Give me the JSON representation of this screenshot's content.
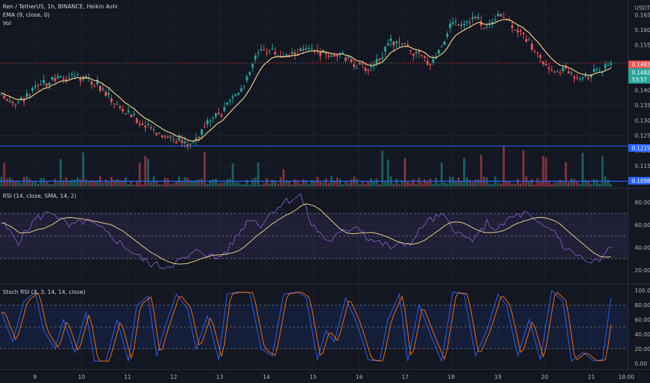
{
  "header": {
    "line1": "Ren / TetherUS, 1h, BINANCE, Heikin Ashi",
    "line2": "EMA (9, close, 0)",
    "line3": "Vol"
  },
  "price_axis": {
    "unit": "USDT",
    "ticks": [
      "0.1650",
      "0.1600",
      "0.1550",
      "0.1450",
      "0.1400",
      "0.1350",
      "0.1300",
      "0.1250",
      "0.1200",
      "0.1150",
      "0.1100"
    ],
    "tags": {
      "current": "0.1482",
      "ema": "0.1482",
      "countdown": "53:57",
      "line_upper": "0.1215",
      "line_lower": "0.1098"
    }
  },
  "rsi": {
    "title": "RSI (14, close, SMA, 14, 2)",
    "ticks": [
      "80.00",
      "60.00",
      "40.00",
      "20.00"
    ]
  },
  "stoch": {
    "title": "Stoch RSI (3, 3, 14, 14, close)",
    "ticks": [
      "100.00",
      "80.00",
      "60.00",
      "40.00",
      "20.00",
      "0.00"
    ]
  },
  "time_axis": {
    "labels": [
      "9",
      "10",
      "11",
      "12",
      "13",
      "14",
      "15",
      "16",
      "17",
      "18",
      "19",
      "20",
      "21",
      "18:00"
    ]
  },
  "colors": {
    "background": "#131722",
    "up": "#26a69a",
    "down": "#ef5350",
    "ema": "#f5d68a",
    "rsi": "#7e57c2",
    "rsi_ma": "#f5d68a",
    "stoch_k": "#2962ff",
    "stoch_d": "#ff6d00",
    "hline": "#2962ff"
  },
  "chart_data": [
    {
      "type": "candlestick",
      "title": "Ren / TetherUS, 1h, BINANCE, Heikin Ashi",
      "ylim": [
        0.1085,
        0.169
      ],
      "hlines": [
        0.1215,
        0.1098
      ],
      "anchors_x": [
        0,
        6,
        13,
        17,
        22,
        26,
        30,
        34,
        38,
        42,
        47,
        51,
        56,
        61,
        66,
        70,
        74,
        78,
        81,
        84,
        88,
        90,
        93,
        96,
        101,
        105,
        111,
        115,
        120,
        123,
        127,
        130,
        133,
        136,
        138,
        142,
        145,
        149,
        152,
        155,
        159,
        163,
        168,
        172,
        176,
        181,
        186,
        190,
        194,
        199,
        203,
        208,
        213,
        216
      ],
      "anchors_price": [
        0.138,
        0.136,
        0.141,
        0.143,
        0.144,
        0.145,
        0.144,
        0.142,
        0.138,
        0.134,
        0.131,
        0.128,
        0.126,
        0.124,
        0.122,
        0.125,
        0.13,
        0.132,
        0.136,
        0.14,
        0.145,
        0.152,
        0.154,
        0.153,
        0.151,
        0.153,
        0.153,
        0.152,
        0.152,
        0.15,
        0.148,
        0.147,
        0.15,
        0.153,
        0.156,
        0.155,
        0.153,
        0.151,
        0.149,
        0.153,
        0.162,
        0.163,
        0.164,
        0.161,
        0.166,
        0.162,
        0.157,
        0.152,
        0.146,
        0.147,
        0.145,
        0.145,
        0.147,
        0.148
      ]
    },
    {
      "type": "line",
      "title": "RSI (14, close, SMA, 14, 2)",
      "ylim": [
        10,
        90
      ],
      "bands": [
        30,
        50,
        70
      ],
      "anchors_x": [
        0,
        6,
        12,
        18,
        24,
        30,
        36,
        42,
        48,
        52,
        58,
        62,
        66,
        70,
        76,
        80,
        84,
        88,
        92,
        96,
        100,
        106,
        110,
        116,
        120,
        126,
        130,
        134,
        138,
        142,
        146,
        150,
        156,
        160,
        164,
        168,
        172,
        176,
        180,
        186,
        190,
        196,
        200,
        204,
        208,
        212,
        216
      ],
      "anchors_value": [
        62,
        45,
        65,
        72,
        58,
        64,
        55,
        44,
        33,
        26,
        23,
        27,
        31,
        38,
        30,
        37,
        52,
        66,
        60,
        72,
        80,
        86,
        60,
        45,
        52,
        60,
        48,
        44,
        40,
        42,
        46,
        62,
        68,
        58,
        48,
        47,
        62,
        55,
        66,
        70,
        60,
        55,
        38,
        34,
        26,
        28,
        40
      ]
    },
    {
      "type": "line",
      "title": "Stoch RSI (3, 3, 14, 14, close)",
      "ylim": [
        -5,
        105
      ],
      "bands": [
        20,
        50,
        80
      ],
      "anchors_x": [
        0,
        4,
        8,
        12,
        15,
        19,
        22,
        26,
        30,
        33,
        37,
        41,
        45,
        48,
        52,
        55,
        58,
        62,
        66,
        69,
        73,
        77,
        80,
        84,
        88,
        92,
        96,
        100,
        105,
        108,
        112,
        115,
        118,
        122,
        126,
        130,
        134,
        137,
        141,
        144,
        148,
        152,
        156,
        160,
        164,
        168,
        172,
        176,
        179,
        183,
        187,
        191,
        195,
        199,
        202,
        206,
        210,
        213,
        216
      ],
      "anchors_value": [
        70,
        30,
        85,
        98,
        45,
        20,
        60,
        15,
        70,
        3,
        3,
        60,
        3,
        80,
        92,
        10,
        50,
        95,
        75,
        20,
        65,
        5,
        95,
        98,
        97,
        20,
        10,
        95,
        98,
        90,
        5,
        45,
        30,
        90,
        55,
        5,
        3,
        60,
        95,
        3,
        80,
        40,
        3,
        98,
        95,
        10,
        45,
        95,
        80,
        10,
        60,
        5,
        100,
        85,
        3,
        15,
        3,
        5,
        90
      ]
    }
  ]
}
